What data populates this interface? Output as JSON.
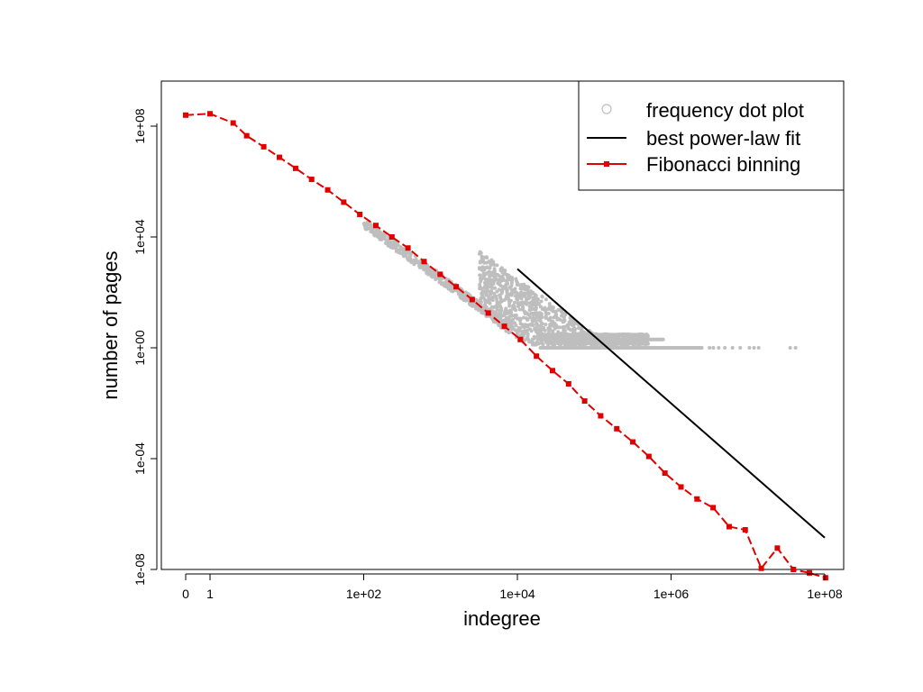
{
  "chart_data": {
    "type": "scatter",
    "title": "",
    "xlabel": "indegree",
    "ylabel": "number of pages",
    "x_scale": "log",
    "y_scale": "log",
    "xlim": [
      0,
      100000000
    ],
    "ylim": [
      1e-08,
      1000000000
    ],
    "grid": false,
    "legend_position": "top-right",
    "x_ticks": [
      {
        "value": 0,
        "label": "0"
      },
      {
        "value": 1,
        "label": "1"
      },
      {
        "value": 100,
        "label": "1e+02"
      },
      {
        "value": 10000,
        "label": "1e+04"
      },
      {
        "value": 1000000,
        "label": "1e+06"
      },
      {
        "value": 100000000,
        "label": "1e+08"
      }
    ],
    "y_ticks": [
      {
        "value": 1e-08,
        "label": "1e-08"
      },
      {
        "value": 0.0001,
        "label": "1e-04"
      },
      {
        "value": 1,
        "label": "1e+00"
      },
      {
        "value": 10000,
        "label": "1e+04"
      },
      {
        "value": 100000000,
        "label": "1e+08"
      }
    ],
    "legend": [
      {
        "label": "frequency dot plot",
        "color": "#bebebe"
      },
      {
        "label": "best power-law fit",
        "color": "#000000"
      },
      {
        "label": "Fibonacci binning",
        "color": "#e00000"
      }
    ],
    "series": [
      {
        "name": "best power-law fit",
        "type": "line",
        "color": "#000000",
        "x": [
          10000,
          100000000
        ],
        "y": [
          700,
          1.4e-07
        ]
      },
      {
        "name": "Fibonacci binning",
        "type": "line+points",
        "color": "#e00000",
        "x": [
          0,
          1,
          2,
          3,
          5,
          8,
          13,
          21,
          34,
          55,
          89,
          144,
          233,
          377,
          610,
          987,
          1597,
          2584,
          4181,
          6765,
          10946,
          17711,
          28657,
          46368,
          75025,
          121393,
          196418,
          317811,
          514229,
          832040,
          1346269,
          2178309,
          3524578,
          5702887,
          9227465,
          14930352,
          24157817,
          39088169,
          63245986,
          102334155
        ],
        "y": [
          250000000,
          280000000,
          130000000.0,
          45000000.0,
          18000000.0,
          7500000.0,
          3000000.0,
          1200000.0,
          500000.0,
          180000.0,
          65000.0,
          26000.0,
          10000.0,
          4000.0,
          1300.0,
          450.0,
          160.0,
          55,
          18,
          6,
          2,
          0.5,
          0.15,
          0.05,
          0.012,
          0.0035,
          0.0012,
          0.0004,
          0.00012,
          3e-05,
          9.5e-06,
          3.5e-06,
          1.7e-06,
          3.5e-07,
          2.7e-07,
          1.1e-08,
          5.9e-08,
          1e-08,
          7.5e-09,
          5e-09
        ]
      },
      {
        "name": "frequency dot plot",
        "type": "scatter",
        "color": "#bebebe",
        "x": [],
        "y": []
      }
    ]
  }
}
